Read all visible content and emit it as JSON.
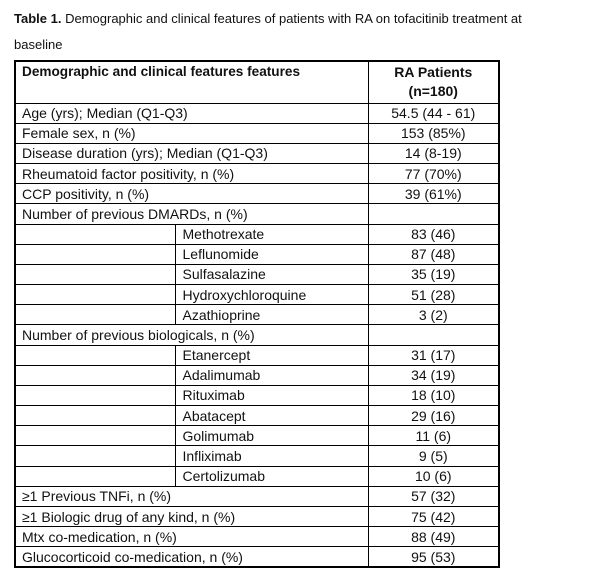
{
  "theme": {
    "ink": "#111111",
    "line": "#000000",
    "background": "#ffffff"
  },
  "caption": {
    "label": "Table 1.",
    "text": "Demographic and clinical features of patients with RA on tofacitinib treatment at",
    "text_line2": "baseline"
  },
  "table": {
    "header": {
      "features": "Demographic and clinical features features",
      "patients_line1": "RA Patients",
      "patients_line2": "(n=180)"
    },
    "rows": [
      {
        "label": "Age (yrs); Median (Q1-Q3)",
        "value": "54.5 (44 - 61)",
        "indent": false
      },
      {
        "label": "Female sex, n (%)",
        "value": "153 (85%)",
        "indent": false
      },
      {
        "label": "Disease duration (yrs); Median (Q1-Q3)",
        "value": "14 (8-19)",
        "indent": false
      },
      {
        "label": "Rheumatoid factor positivity, n (%)",
        "value": "77 (70%)",
        "indent": false
      },
      {
        "label": "CCP positivity, n (%)",
        "value": "39 (61%)",
        "indent": false
      },
      {
        "label": "Number of previous DMARDs, n (%)",
        "value": "",
        "indent": false
      },
      {
        "label": "Methotrexate",
        "value": "83 (46)",
        "indent": true
      },
      {
        "label": "Leflunomide",
        "value": "87 (48)",
        "indent": true
      },
      {
        "label": "Sulfasalazine",
        "value": "35 (19)",
        "indent": true
      },
      {
        "label": "Hydroxychloroquine",
        "value": "51 (28)",
        "indent": true
      },
      {
        "label": "Azathioprine",
        "value": "3 (2)",
        "indent": true
      },
      {
        "label": "Number of previous biologicals, n (%)",
        "value": "",
        "indent": false
      },
      {
        "label": "Etanercept",
        "value": "31 (17)",
        "indent": true
      },
      {
        "label": "Adalimumab",
        "value": "34 (19)",
        "indent": true
      },
      {
        "label": "Rituximab",
        "value": "18 (10)",
        "indent": true
      },
      {
        "label": "Abatacept",
        "value": "29 (16)",
        "indent": true
      },
      {
        "label": "Golimumab",
        "value": "11 (6)",
        "indent": true
      },
      {
        "label": "Infliximab",
        "value": "9 (5)",
        "indent": true
      },
      {
        "label": "Certolizumab",
        "value": "10 (6)",
        "indent": true
      },
      {
        "label": "≥1 Previous TNFi, n (%)",
        "value": "57 (32)",
        "indent": false
      },
      {
        "label": "≥1 Biologic drug of any kind, n (%)",
        "value": "75 (42)",
        "indent": false
      },
      {
        "label": "Mtx co-medication, n (%)",
        "value": "88 (49)",
        "indent": false
      },
      {
        "label": "Glucocorticoid co-medication, n (%)",
        "value": "95 (53)",
        "indent": false
      }
    ]
  }
}
